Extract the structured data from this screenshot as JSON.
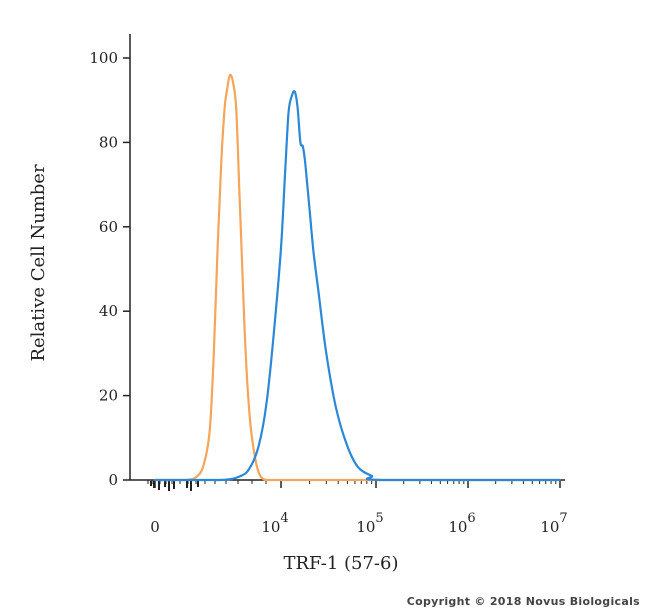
{
  "chart_data": {
    "type": "line",
    "title": "",
    "xlabel": "TRF-1 (57-6)",
    "ylabel": "Relative Cell Number",
    "x_scale": "biexponential",
    "x_tick_labels": [
      {
        "base": "0",
        "exp": ""
      },
      {
        "base": "10",
        "exp": "4"
      },
      {
        "base": "10",
        "exp": "5"
      },
      {
        "base": "10",
        "exp": "6"
      },
      {
        "base": "10",
        "exp": "7"
      }
    ],
    "y_ticks": [
      0,
      20,
      40,
      60,
      80,
      100
    ],
    "ylim": [
      0,
      105
    ],
    "grid": false,
    "legend": "none",
    "series": [
      {
        "color": "#f5a55a",
        "x": [
          0,
          800,
          1400,
          1800,
          2200,
          2500,
          2800,
          3100,
          3400,
          3650,
          3900,
          4200,
          4500,
          4800,
          5100,
          5500,
          6000,
          6600,
          7200,
          8000,
          9000,
          10000,
          1000000,
          12000000
        ],
        "y": [
          0,
          0,
          1,
          4,
          12,
          30,
          55,
          75,
          88,
          93,
          96,
          94,
          88,
          70,
          52,
          30,
          14,
          5,
          1,
          0,
          0,
          0,
          0,
          0
        ]
      },
      {
        "color": "#2b88d8",
        "x": [
          0,
          3000,
          5000,
          6000,
          7000,
          8000,
          9000,
          10000,
          11000,
          12000,
          13000,
          14000,
          15000,
          16000,
          17000,
          18000,
          20000,
          22000,
          25000,
          30000,
          38000,
          50000,
          65000,
          90000,
          120000,
          12000000
        ],
        "y": [
          0,
          0,
          1,
          3,
          8,
          18,
          35,
          55,
          72,
          87,
          91,
          92,
          88,
          80,
          79,
          75,
          64,
          54,
          44,
          30,
          17,
          8,
          3,
          1,
          0,
          0
        ]
      }
    ]
  },
  "copyright": "Copyright © 2018 Novus Biologicals"
}
